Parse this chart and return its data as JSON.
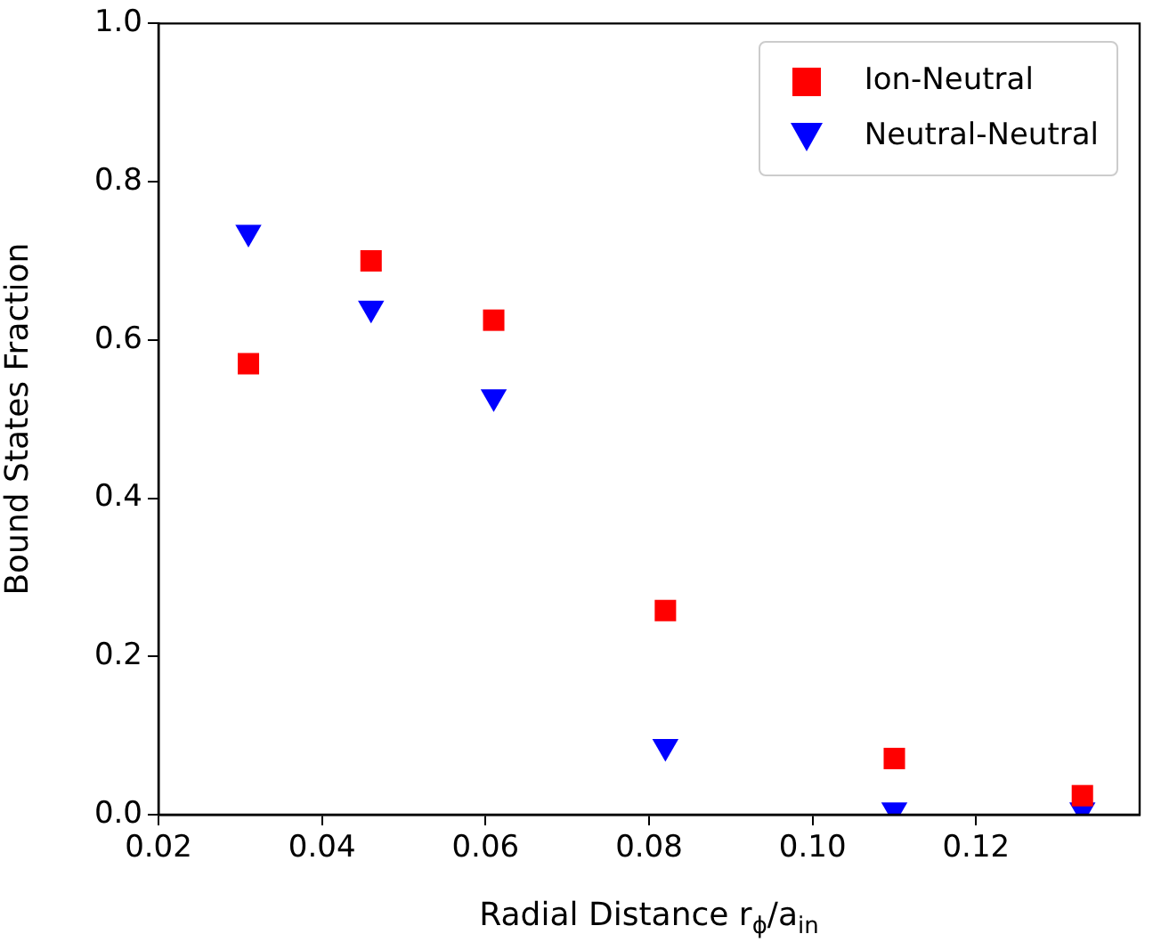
{
  "chart_data": {
    "type": "scatter",
    "xlabel": "Radial Distance r$_{ϕ}$/a$_{in}$",
    "ylabel": "Bound States Fraction",
    "x": [
      0.031,
      0.046,
      0.061,
      0.082,
      0.11,
      0.133
    ],
    "series": [
      {
        "name": "Ion-Neutral",
        "color": "#ff0000",
        "marker": "square",
        "values": [
          0.57,
          0.7,
          0.625,
          0.258,
          0.071,
          0.024
        ]
      },
      {
        "name": "Neutral-Neutral",
        "color": "#0000ff",
        "marker": "triangle",
        "values": [
          0.736,
          0.64,
          0.528,
          0.086,
          0.006,
          0.006
        ]
      }
    ],
    "xlim": [
      0.02,
      0.14
    ],
    "xticks": [
      {
        "value": 0.02,
        "label": "0.02"
      },
      {
        "value": 0.04,
        "label": "0.04"
      },
      {
        "value": 0.06,
        "label": "0.06"
      },
      {
        "value": 0.08,
        "label": "0.08"
      },
      {
        "value": 0.1,
        "label": "0.10"
      },
      {
        "value": 0.12,
        "label": "0.12"
      }
    ],
    "ylim": [
      0,
      1
    ],
    "yticks": [
      {
        "value": 0,
        "label": "0.0"
      },
      {
        "value": 0.2,
        "label": "0.2"
      },
      {
        "value": 0.4,
        "label": "0.4"
      },
      {
        "value": 0.6,
        "label": "0.6"
      },
      {
        "value": 0.8,
        "label": "0.8"
      },
      {
        "value": 1,
        "label": "1.0"
      }
    ],
    "grid": false,
    "legend": "top right"
  }
}
